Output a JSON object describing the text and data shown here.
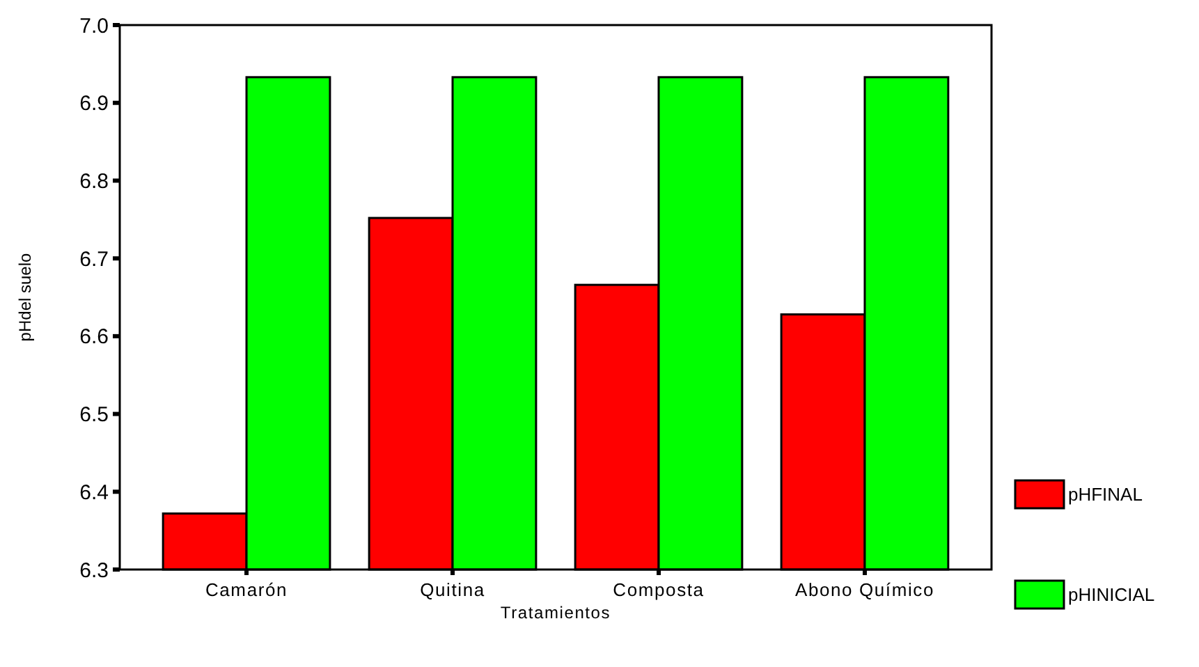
{
  "chart_data": {
    "type": "bar",
    "xlabel": "Tratamientos",
    "ylabel": "pHdel suelo",
    "categories": [
      "Camarón",
      "Quitina",
      "Composta",
      "Abono Químico"
    ],
    "series": [
      {
        "name": "pHFINAL",
        "color": "#ff0000",
        "values": [
          6.372,
          6.752,
          6.666,
          6.628
        ]
      },
      {
        "name": "pHINICIAL",
        "color": "#00ff00",
        "values": [
          6.933,
          6.933,
          6.933,
          6.933
        ]
      }
    ],
    "ylim": [
      6.3,
      7.0
    ],
    "yticks": [
      {
        "value": 6.3,
        "label": "6.3"
      },
      {
        "value": 6.4,
        "label": "6.4"
      },
      {
        "value": 6.5,
        "label": "6.5"
      },
      {
        "value": 6.6,
        "label": "6.6"
      },
      {
        "value": 6.7,
        "label": "6.7"
      },
      {
        "value": 6.8,
        "label": "6.8"
      },
      {
        "value": 6.9,
        "label": "6.9"
      },
      {
        "value": 7.0,
        "label": "7.0"
      }
    ],
    "grid": false,
    "legend": "right"
  }
}
